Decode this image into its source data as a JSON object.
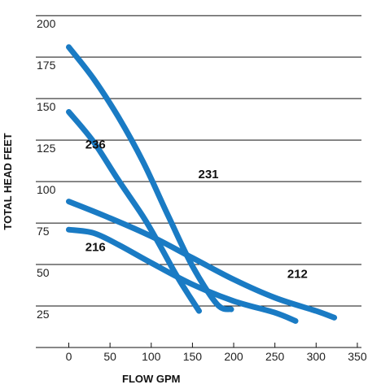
{
  "chart_data": {
    "type": "line",
    "title": "",
    "xlabel": "FLOW GPM",
    "ylabel": "TOTAL HEAD FEET",
    "xlim": [
      -40,
      355
    ],
    "ylim": [
      0,
      205
    ],
    "x_ticks": [
      0,
      50,
      100,
      150,
      200,
      250,
      300,
      350
    ],
    "y_ticks": [
      25,
      50,
      75,
      100,
      125,
      150,
      175,
      200
    ],
    "grid": "horizontal",
    "line_color": "#1a7bc4",
    "series": [
      {
        "name": "231",
        "points": [
          [
            0,
            181
          ],
          [
            30,
            162
          ],
          [
            60,
            139
          ],
          [
            90,
            112
          ],
          [
            120,
            80
          ],
          [
            150,
            49
          ],
          [
            180,
            26
          ],
          [
            197,
            23
          ]
        ]
      },
      {
        "name": "236",
        "points": [
          [
            0,
            142
          ],
          [
            30,
            124
          ],
          [
            60,
            101
          ],
          [
            90,
            79
          ],
          [
            110,
            62
          ],
          [
            130,
            44
          ],
          [
            145,
            32
          ],
          [
            158,
            22
          ]
        ]
      },
      {
        "name": "212",
        "points": [
          [
            0,
            88
          ],
          [
            50,
            78
          ],
          [
            100,
            67
          ],
          [
            150,
            54
          ],
          [
            200,
            41
          ],
          [
            250,
            30
          ],
          [
            300,
            22
          ],
          [
            322,
            18
          ]
        ]
      },
      {
        "name": "216",
        "points": [
          [
            0,
            71
          ],
          [
            30,
            69
          ],
          [
            60,
            62
          ],
          [
            100,
            51
          ],
          [
            150,
            38
          ],
          [
            200,
            28
          ],
          [
            250,
            21
          ],
          [
            275,
            16
          ]
        ]
      }
    ],
    "labels": [
      {
        "text": "231",
        "x": 157,
        "y": 102
      },
      {
        "text": "236",
        "x": 20,
        "y": 120
      },
      {
        "text": "212",
        "x": 265,
        "y": 42
      },
      {
        "text": "216",
        "x": 20,
        "y": 58
      }
    ]
  }
}
